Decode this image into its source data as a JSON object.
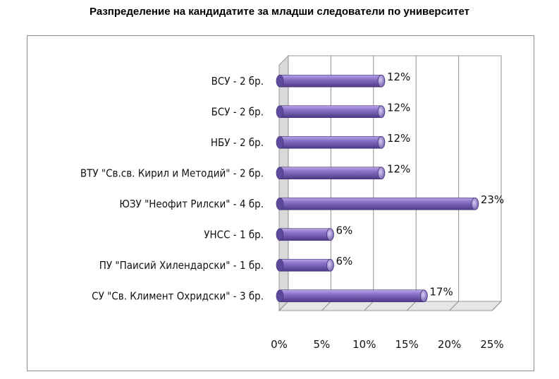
{
  "chart_data": {
    "type": "bar",
    "orientation": "horizontal",
    "title": "Разпределение на кандидатите за младши следователи по университет",
    "categories": [
      "ВСУ - 2 бр.",
      "БСУ - 2 бр.",
      "НБУ - 2 бр.",
      "ВТУ \"Св.св. Кирил и Методий\" - 2 бр.",
      "ЮЗУ \"Неофит Рилски\" - 4 бр.",
      "УНСС - 1 бр.",
      "ПУ \"Паисий Хилендарски\" - 1 бр.",
      "СУ \"Св. Климент Охридски\" - 3 бр."
    ],
    "values": [
      12,
      12,
      12,
      12,
      23,
      6,
      6,
      17
    ],
    "data_labels": [
      "12%",
      "12%",
      "12%",
      "12%",
      "23%",
      "6%",
      "6%",
      "17%"
    ],
    "xlim": [
      0,
      25
    ],
    "xticks": [
      "0%",
      "5%",
      "10%",
      "15%",
      "20%",
      "25%"
    ],
    "grid": true,
    "bar_color": "#7b63b8"
  }
}
